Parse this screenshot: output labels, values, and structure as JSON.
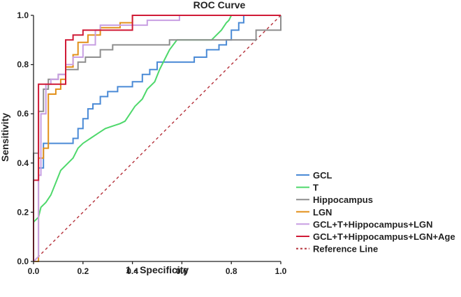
{
  "chart_data": {
    "type": "line",
    "title": "ROC Curve",
    "xlabel": "1 - Specificity",
    "ylabel": "Sensitivity",
    "xlim": [
      0,
      1
    ],
    "ylim": [
      0,
      1
    ],
    "x_ticks": [
      "0.0",
      "0.2",
      "0.4",
      "0.6",
      "0.8",
      "1.0"
    ],
    "y_ticks": [
      "0.0",
      "0.2",
      "0.4",
      "0.6",
      "0.8",
      "1.0"
    ],
    "legend_position": "bottom-right",
    "grid": false,
    "series": [
      {
        "name": "GCL",
        "color": "#4a8ad6",
        "dash": "",
        "points": [
          [
            0,
            0
          ],
          [
            0,
            0.33
          ],
          [
            0.02,
            0.33
          ],
          [
            0.02,
            0.38
          ],
          [
            0.04,
            0.38
          ],
          [
            0.04,
            0.48
          ],
          [
            0.16,
            0.48
          ],
          [
            0.16,
            0.5
          ],
          [
            0.18,
            0.5
          ],
          [
            0.18,
            0.54
          ],
          [
            0.2,
            0.54
          ],
          [
            0.2,
            0.58
          ],
          [
            0.22,
            0.58
          ],
          [
            0.22,
            0.62
          ],
          [
            0.24,
            0.62
          ],
          [
            0.24,
            0.64
          ],
          [
            0.27,
            0.64
          ],
          [
            0.27,
            0.67
          ],
          [
            0.3,
            0.67
          ],
          [
            0.3,
            0.69
          ],
          [
            0.34,
            0.69
          ],
          [
            0.34,
            0.71
          ],
          [
            0.4,
            0.71
          ],
          [
            0.4,
            0.73
          ],
          [
            0.44,
            0.73
          ],
          [
            0.44,
            0.76
          ],
          [
            0.47,
            0.76
          ],
          [
            0.47,
            0.78
          ],
          [
            0.5,
            0.78
          ],
          [
            0.5,
            0.81
          ],
          [
            0.65,
            0.81
          ],
          [
            0.65,
            0.83
          ],
          [
            0.7,
            0.83
          ],
          [
            0.7,
            0.86
          ],
          [
            0.75,
            0.86
          ],
          [
            0.75,
            0.88
          ],
          [
            0.78,
            0.88
          ],
          [
            0.78,
            0.9
          ],
          [
            0.8,
            0.9
          ],
          [
            0.8,
            0.94
          ],
          [
            0.83,
            0.94
          ],
          [
            0.83,
            0.97
          ],
          [
            0.85,
            0.97
          ],
          [
            0.85,
            1
          ],
          [
            1,
            1
          ]
        ]
      },
      {
        "name": "T",
        "color": "#4ed86b",
        "dash": "",
        "points": [
          [
            0,
            0
          ],
          [
            0,
            0.16
          ],
          [
            0.02,
            0.18
          ],
          [
            0.03,
            0.22
          ],
          [
            0.05,
            0.24
          ],
          [
            0.07,
            0.27
          ],
          [
            0.09,
            0.32
          ],
          [
            0.11,
            0.37
          ],
          [
            0.13,
            0.39
          ],
          [
            0.16,
            0.42
          ],
          [
            0.18,
            0.46
          ],
          [
            0.2,
            0.48
          ],
          [
            0.23,
            0.5
          ],
          [
            0.26,
            0.52
          ],
          [
            0.29,
            0.54
          ],
          [
            0.32,
            0.55
          ],
          [
            0.35,
            0.56
          ],
          [
            0.37,
            0.57
          ],
          [
            0.39,
            0.6
          ],
          [
            0.41,
            0.63
          ],
          [
            0.44,
            0.66
          ],
          [
            0.46,
            0.7
          ],
          [
            0.49,
            0.73
          ],
          [
            0.51,
            0.78
          ],
          [
            0.53,
            0.82
          ],
          [
            0.55,
            0.86
          ],
          [
            0.58,
            0.9
          ],
          [
            0.72,
            0.9
          ],
          [
            0.74,
            0.92
          ],
          [
            0.76,
            0.94
          ],
          [
            0.78,
            0.97
          ],
          [
            0.79,
            0.98
          ],
          [
            0.8,
            1
          ],
          [
            1,
            1
          ]
        ]
      },
      {
        "name": "Hippocampus",
        "color": "#8e8e8e",
        "dash": "",
        "points": [
          [
            0,
            0
          ],
          [
            0,
            0.44
          ],
          [
            0.02,
            0.44
          ],
          [
            0.02,
            0.61
          ],
          [
            0.04,
            0.61
          ],
          [
            0.04,
            0.7
          ],
          [
            0.06,
            0.7
          ],
          [
            0.06,
            0.74
          ],
          [
            0.1,
            0.74
          ],
          [
            0.1,
            0.76
          ],
          [
            0.13,
            0.76
          ],
          [
            0.13,
            0.78
          ],
          [
            0.18,
            0.78
          ],
          [
            0.18,
            0.81
          ],
          [
            0.21,
            0.81
          ],
          [
            0.21,
            0.83
          ],
          [
            0.27,
            0.83
          ],
          [
            0.27,
            0.86
          ],
          [
            0.32,
            0.86
          ],
          [
            0.32,
            0.88
          ],
          [
            0.55,
            0.88
          ],
          [
            0.55,
            0.9
          ],
          [
            0.9,
            0.9
          ],
          [
            0.9,
            0.94
          ],
          [
            1,
            0.94
          ],
          [
            1,
            1
          ]
        ]
      },
      {
        "name": "LGN",
        "color": "#e2901a",
        "dash": "",
        "points": [
          [
            0,
            0
          ],
          [
            0.02,
            0
          ],
          [
            0.02,
            0.42
          ],
          [
            0.04,
            0.42
          ],
          [
            0.04,
            0.46
          ],
          [
            0.06,
            0.46
          ],
          [
            0.06,
            0.68
          ],
          [
            0.09,
            0.68
          ],
          [
            0.09,
            0.7
          ],
          [
            0.11,
            0.7
          ],
          [
            0.11,
            0.74
          ],
          [
            0.13,
            0.74
          ],
          [
            0.13,
            0.79
          ],
          [
            0.16,
            0.79
          ],
          [
            0.16,
            0.84
          ],
          [
            0.18,
            0.84
          ],
          [
            0.18,
            0.89
          ],
          [
            0.22,
            0.89
          ],
          [
            0.22,
            0.92
          ],
          [
            0.27,
            0.92
          ],
          [
            0.27,
            0.95
          ],
          [
            0.35,
            0.95
          ],
          [
            0.35,
            0.97
          ],
          [
            0.4,
            0.97
          ],
          [
            0.4,
            1
          ],
          [
            1,
            1
          ]
        ]
      },
      {
        "name": "GCL+T+Hippocampus+LGN",
        "color": "#c79ee2",
        "dash": "",
        "points": [
          [
            0,
            0
          ],
          [
            0.02,
            0.02
          ],
          [
            0.02,
            0.35
          ],
          [
            0.03,
            0.35
          ],
          [
            0.03,
            0.6
          ],
          [
            0.05,
            0.6
          ],
          [
            0.05,
            0.72
          ],
          [
            0.07,
            0.72
          ],
          [
            0.07,
            0.74
          ],
          [
            0.1,
            0.74
          ],
          [
            0.1,
            0.76
          ],
          [
            0.13,
            0.76
          ],
          [
            0.13,
            0.8
          ],
          [
            0.16,
            0.8
          ],
          [
            0.16,
            0.83
          ],
          [
            0.2,
            0.83
          ],
          [
            0.2,
            0.88
          ],
          [
            0.25,
            0.88
          ],
          [
            0.25,
            0.94
          ],
          [
            0.27,
            0.94
          ],
          [
            0.27,
            0.96
          ],
          [
            0.46,
            0.96
          ],
          [
            0.46,
            0.98
          ],
          [
            0.59,
            0.98
          ],
          [
            0.59,
            1
          ],
          [
            1,
            1
          ]
        ]
      },
      {
        "name": "GCL+T+Hippocampus+LGN+Age",
        "color": "#d01a36",
        "dash": "",
        "points": [
          [
            0,
            0
          ],
          [
            0,
            0.33
          ],
          [
            0.02,
            0.33
          ],
          [
            0.02,
            0.72
          ],
          [
            0.13,
            0.72
          ],
          [
            0.13,
            0.9
          ],
          [
            0.16,
            0.9
          ],
          [
            0.16,
            0.92
          ],
          [
            0.2,
            0.92
          ],
          [
            0.2,
            0.94
          ],
          [
            0.4,
            0.94
          ],
          [
            0.4,
            1
          ],
          [
            1,
            1
          ]
        ]
      },
      {
        "name": "Reference Line",
        "color": "#b5303a",
        "dash": "4,4",
        "points": [
          [
            0,
            0
          ],
          [
            1,
            1
          ]
        ]
      }
    ]
  }
}
